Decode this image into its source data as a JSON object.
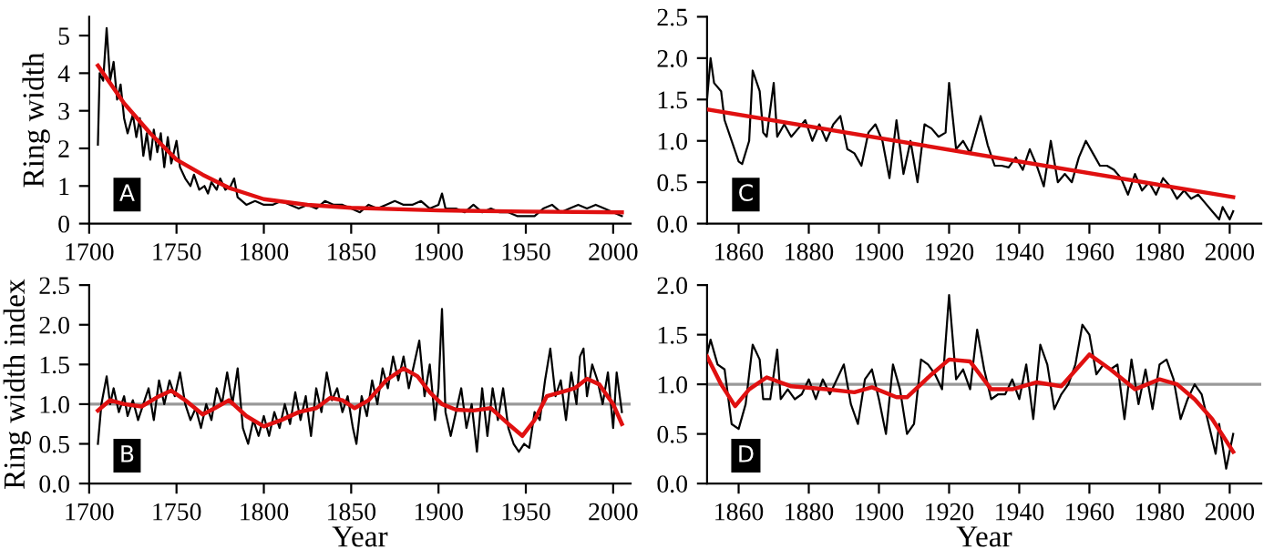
{
  "chart_data": [
    {
      "type": "line",
      "ylabel": "Ring width",
      "annotations": [
        "A"
      ],
      "xlim": [
        1700,
        2010
      ],
      "xticks": [
        1700,
        1750,
        1800,
        1850,
        1900,
        1950,
        2000
      ],
      "ylim": [
        0,
        5.5
      ],
      "yticks": [
        0,
        1,
        2,
        3,
        4,
        5
      ],
      "grid": false,
      "legend": false,
      "series": [
        {
          "color": "#000000",
          "x": [
            1705,
            1706,
            1708,
            1710,
            1712,
            1714,
            1716,
            1718,
            1720,
            1722,
            1725,
            1727,
            1729,
            1731,
            1733,
            1735,
            1737,
            1739,
            1741,
            1743,
            1745,
            1747,
            1750,
            1752,
            1755,
            1758,
            1760,
            1763,
            1766,
            1768,
            1770,
            1773,
            1775,
            1778,
            1781,
            1783,
            1785,
            1790,
            1795,
            1800,
            1805,
            1810,
            1815,
            1820,
            1825,
            1830,
            1835,
            1840,
            1845,
            1850,
            1855,
            1860,
            1865,
            1870,
            1875,
            1880,
            1885,
            1890,
            1895,
            1900,
            1902,
            1904,
            1910,
            1915,
            1920,
            1925,
            1930,
            1935,
            1940,
            1945,
            1950,
            1955,
            1960,
            1965,
            1970,
            1975,
            1980,
            1985,
            1990,
            1995,
            2000,
            2005
          ],
          "values": [
            2.1,
            4.0,
            3.8,
            5.2,
            3.8,
            4.3,
            3.3,
            3.7,
            2.8,
            2.4,
            2.9,
            2.3,
            2.8,
            1.8,
            2.4,
            1.7,
            2.5,
            1.9,
            2.4,
            1.5,
            2.3,
            1.6,
            2.2,
            1.5,
            1.2,
            1.0,
            1.3,
            0.9,
            1.0,
            0.8,
            1.1,
            0.9,
            1.2,
            0.9,
            1.0,
            1.2,
            0.7,
            0.5,
            0.6,
            0.5,
            0.5,
            0.6,
            0.5,
            0.4,
            0.5,
            0.4,
            0.6,
            0.5,
            0.5,
            0.4,
            0.3,
            0.5,
            0.4,
            0.5,
            0.6,
            0.5,
            0.5,
            0.6,
            0.4,
            0.5,
            0.8,
            0.4,
            0.4,
            0.3,
            0.5,
            0.3,
            0.4,
            0.3,
            0.3,
            0.2,
            0.2,
            0.2,
            0.4,
            0.5,
            0.3,
            0.4,
            0.5,
            0.4,
            0.5,
            0.4,
            0.3,
            0.2
          ]
        },
        {
          "color": "#e01010",
          "x": [
            1705,
            1720,
            1735,
            1750,
            1765,
            1780,
            1800,
            1825,
            1850,
            1900,
            1950,
            2005
          ],
          "values": [
            4.2,
            3.2,
            2.4,
            1.7,
            1.3,
            0.95,
            0.65,
            0.5,
            0.42,
            0.35,
            0.32,
            0.3
          ]
        }
      ]
    },
    {
      "type": "line",
      "annotations": [
        "C"
      ],
      "xlim": [
        1851,
        2009
      ],
      "xticks": [
        1860,
        1880,
        1900,
        1920,
        1940,
        1960,
        1980,
        2000
      ],
      "ylim": [
        0,
        2.5
      ],
      "yticks": [
        {
          "value": 0,
          "label": "0.0"
        },
        {
          "value": 0.5,
          "label": "0.5"
        },
        {
          "value": 1,
          "label": "1.0"
        },
        {
          "value": 1.5,
          "label": "1.5"
        },
        {
          "value": 2,
          "label": "2.0"
        },
        {
          "value": 2.5,
          "label": "2.5"
        }
      ],
      "grid": false,
      "legend": false,
      "series": [
        {
          "color": "#000000",
          "x": [
            1851,
            1852,
            1853,
            1855,
            1856,
            1858,
            1860,
            1861,
            1863,
            1864,
            1866,
            1867,
            1868,
            1870,
            1871,
            1873,
            1875,
            1877,
            1879,
            1881,
            1883,
            1885,
            1887,
            1889,
            1891,
            1893,
            1895,
            1897,
            1899,
            1901,
            1903,
            1905,
            1907,
            1909,
            1911,
            1913,
            1915,
            1917,
            1919,
            1920,
            1922,
            1924,
            1926,
            1927,
            1929,
            1931,
            1933,
            1935,
            1937,
            1939,
            1941,
            1943,
            1945,
            1947,
            1949,
            1951,
            1953,
            1955,
            1957,
            1959,
            1961,
            1963,
            1965,
            1967,
            1969,
            1971,
            1973,
            1975,
            1977,
            1979,
            1981,
            1983,
            1985,
            1987,
            1989,
            1991,
            1993,
            1995,
            1997,
            1998,
            2000,
            2001
          ],
          "values": [
            1.5,
            2.0,
            1.7,
            1.6,
            1.25,
            1.0,
            0.75,
            0.72,
            1.0,
            1.85,
            1.6,
            1.1,
            1.05,
            1.7,
            1.05,
            1.2,
            1.05,
            1.15,
            1.25,
            1.0,
            1.2,
            1.0,
            1.2,
            1.3,
            0.9,
            0.85,
            0.7,
            1.1,
            1.2,
            1.0,
            0.55,
            1.25,
            0.6,
            1.0,
            0.5,
            1.2,
            1.15,
            1.05,
            1.1,
            1.7,
            0.9,
            1.0,
            0.85,
            1.0,
            1.3,
            0.95,
            0.7,
            0.7,
            0.68,
            0.8,
            0.65,
            0.9,
            0.7,
            0.45,
            1.0,
            0.5,
            0.6,
            0.5,
            0.8,
            1.0,
            0.85,
            0.7,
            0.7,
            0.65,
            0.55,
            0.35,
            0.6,
            0.4,
            0.5,
            0.35,
            0.55,
            0.45,
            0.3,
            0.4,
            0.3,
            0.35,
            0.25,
            0.15,
            0.05,
            0.2,
            0.05,
            0.15
          ]
        },
        {
          "color": "#e01010",
          "x": [
            1851,
            2001
          ],
          "values": [
            1.38,
            0.32
          ]
        }
      ]
    },
    {
      "type": "line",
      "ylabel": "Ring width index",
      "xlabel": "Year",
      "annotations": [
        "B"
      ],
      "xlim": [
        1700,
        2010
      ],
      "xticks": [
        1700,
        1750,
        1800,
        1850,
        1900,
        1950,
        2000
      ],
      "ylim": [
        0,
        2.5
      ],
      "yticks": [
        {
          "value": 0,
          "label": "0.0"
        },
        {
          "value": 0.5,
          "label": "0.5"
        },
        {
          "value": 1,
          "label": "1.0"
        },
        {
          "value": 1.5,
          "label": "1.5"
        },
        {
          "value": 2,
          "label": "2.0"
        },
        {
          "value": 2.5,
          "label": "2.5"
        }
      ],
      "grid": false,
      "legend": false,
      "ref_lines": [
        {
          "axis": "y",
          "value": 1,
          "color": "#999999"
        }
      ],
      "series": [
        {
          "color": "#000000",
          "x": [
            1705,
            1707,
            1710,
            1712,
            1714,
            1717,
            1720,
            1722,
            1725,
            1728,
            1731,
            1734,
            1737,
            1740,
            1743,
            1746,
            1749,
            1752,
            1755,
            1758,
            1761,
            1764,
            1767,
            1770,
            1773,
            1776,
            1779,
            1782,
            1785,
            1788,
            1791,
            1794,
            1797,
            1800,
            1803,
            1806,
            1809,
            1812,
            1815,
            1818,
            1821,
            1824,
            1827,
            1830,
            1833,
            1836,
            1839,
            1842,
            1845,
            1848,
            1851,
            1853,
            1856,
            1859,
            1862,
            1865,
            1868,
            1871,
            1874,
            1877,
            1880,
            1883,
            1886,
            1889,
            1892,
            1895,
            1898,
            1900,
            1902,
            1904,
            1907,
            1910,
            1913,
            1916,
            1919,
            1922,
            1925,
            1928,
            1931,
            1934,
            1937,
            1940,
            1943,
            1946,
            1949,
            1952,
            1955,
            1958,
            1961,
            1964,
            1967,
            1970,
            1973,
            1976,
            1979,
            1981,
            1983,
            1985,
            1988,
            1991,
            1994,
            1997,
            2000,
            2002,
            2005
          ],
          "values": [
            0.5,
            1.0,
            1.35,
            1.0,
            1.2,
            0.9,
            1.1,
            0.85,
            1.05,
            0.8,
            1.0,
            1.2,
            0.8,
            1.3,
            1.0,
            1.3,
            1.1,
            1.4,
            1.0,
            0.8,
            0.95,
            0.7,
            1.0,
            0.8,
            1.2,
            1.0,
            1.4,
            1.0,
            1.45,
            0.7,
            0.5,
            0.8,
            0.6,
            0.85,
            0.6,
            0.9,
            0.7,
            1.0,
            0.75,
            1.15,
            0.8,
            1.1,
            0.6,
            1.2,
            0.9,
            1.4,
            1.05,
            1.2,
            0.9,
            1.1,
            0.7,
            0.5,
            1.1,
            0.85,
            1.3,
            1.0,
            1.45,
            1.2,
            1.6,
            1.3,
            1.6,
            1.2,
            1.5,
            1.8,
            1.1,
            1.5,
            0.8,
            1.2,
            2.2,
            0.9,
            0.6,
            0.9,
            1.2,
            0.7,
            1.0,
            0.4,
            1.2,
            0.6,
            1.2,
            0.8,
            1.2,
            0.7,
            0.5,
            0.4,
            0.5,
            0.45,
            0.9,
            0.8,
            1.3,
            1.7,
            1.1,
            1.3,
            0.8,
            1.4,
            1.0,
            1.6,
            1.7,
            1.1,
            1.5,
            1.3,
            1.0,
            1.4,
            0.7,
            1.4,
            0.9
          ]
        },
        {
          "color": "#e01010",
          "x": [
            1705,
            1712,
            1720,
            1730,
            1740,
            1747,
            1755,
            1765,
            1772,
            1780,
            1790,
            1800,
            1810,
            1820,
            1830,
            1838,
            1845,
            1852,
            1860,
            1870,
            1880,
            1888,
            1895,
            1902,
            1910,
            1920,
            1930,
            1940,
            1948,
            1955,
            1962,
            1970,
            1978,
            1985,
            1992,
            2000,
            2005
          ],
          "values": [
            0.92,
            1.05,
            1.0,
            0.97,
            1.1,
            1.17,
            1.05,
            0.87,
            0.95,
            1.05,
            0.85,
            0.72,
            0.8,
            0.9,
            0.95,
            1.08,
            1.05,
            0.95,
            1.05,
            1.3,
            1.45,
            1.35,
            1.15,
            1.0,
            0.93,
            0.92,
            0.95,
            0.75,
            0.6,
            0.8,
            1.1,
            1.15,
            1.2,
            1.32,
            1.25,
            1.0,
            0.75
          ]
        }
      ]
    },
    {
      "type": "line",
      "xlabel": "Year",
      "annotations": [
        "D"
      ],
      "xlim": [
        1851,
        2009
      ],
      "xticks": [
        1860,
        1880,
        1900,
        1920,
        1940,
        1960,
        1980,
        2000
      ],
      "ylim": [
        0,
        2.0
      ],
      "yticks": [
        {
          "value": 0,
          "label": "0.0"
        },
        {
          "value": 0.5,
          "label": "0.5"
        },
        {
          "value": 1,
          "label": "1.0"
        },
        {
          "value": 1.5,
          "label": "1.5"
        },
        {
          "value": 2,
          "label": "2.0"
        }
      ],
      "grid": false,
      "legend": false,
      "ref_lines": [
        {
          "axis": "y",
          "value": 1,
          "color": "#999999"
        }
      ],
      "series": [
        {
          "color": "#000000",
          "x": [
            1851,
            1852,
            1854,
            1856,
            1858,
            1860,
            1862,
            1864,
            1866,
            1867,
            1869,
            1871,
            1872,
            1874,
            1876,
            1878,
            1880,
            1882,
            1884,
            1886,
            1888,
            1890,
            1892,
            1894,
            1896,
            1898,
            1900,
            1902,
            1904,
            1906,
            1908,
            1910,
            1912,
            1914,
            1916,
            1918,
            1920,
            1922,
            1924,
            1926,
            1928,
            1930,
            1932,
            1934,
            1936,
            1938,
            1940,
            1942,
            1944,
            1946,
            1948,
            1950,
            1952,
            1954,
            1956,
            1958,
            1960,
            1962,
            1964,
            1966,
            1968,
            1970,
            1972,
            1974,
            1976,
            1978,
            1980,
            1982,
            1984,
            1986,
            1988,
            1990,
            1992,
            1994,
            1996,
            1997,
            1999,
            2001
          ],
          "values": [
            1.3,
            1.45,
            1.2,
            1.15,
            0.6,
            0.55,
            0.8,
            1.4,
            1.25,
            0.85,
            0.85,
            1.35,
            0.85,
            0.95,
            0.85,
            0.9,
            1.05,
            0.85,
            1.05,
            0.9,
            1.05,
            1.2,
            0.8,
            0.6,
            1.05,
            1.15,
            0.85,
            0.5,
            1.2,
            0.95,
            0.5,
            0.6,
            1.25,
            1.2,
            1.1,
            0.95,
            1.9,
            1.05,
            1.15,
            0.95,
            1.55,
            1.15,
            0.85,
            0.9,
            0.9,
            1.05,
            0.85,
            1.2,
            0.65,
            1.4,
            1.2,
            0.75,
            0.9,
            1.0,
            1.2,
            1.6,
            1.5,
            1.1,
            1.2,
            1.15,
            1.2,
            0.65,
            1.25,
            0.8,
            1.15,
            0.75,
            1.2,
            1.25,
            1.05,
            0.65,
            0.85,
            1.0,
            0.9,
            0.6,
            0.3,
            0.6,
            0.15,
            0.5
          ]
        },
        {
          "color": "#e01010",
          "x": [
            1851,
            1855,
            1859,
            1863,
            1868,
            1875,
            1885,
            1893,
            1898,
            1905,
            1908,
            1915,
            1920,
            1926,
            1932,
            1938,
            1945,
            1952,
            1960,
            1966,
            1973,
            1980,
            1985,
            1990,
            1995,
            2001
          ],
          "values": [
            1.28,
            1.0,
            0.78,
            0.95,
            1.07,
            0.98,
            0.95,
            0.92,
            0.97,
            0.87,
            0.87,
            1.1,
            1.25,
            1.23,
            0.95,
            0.95,
            1.02,
            0.98,
            1.3,
            1.15,
            0.95,
            1.05,
            1.0,
            0.85,
            0.65,
            0.32
          ]
        }
      ]
    }
  ]
}
